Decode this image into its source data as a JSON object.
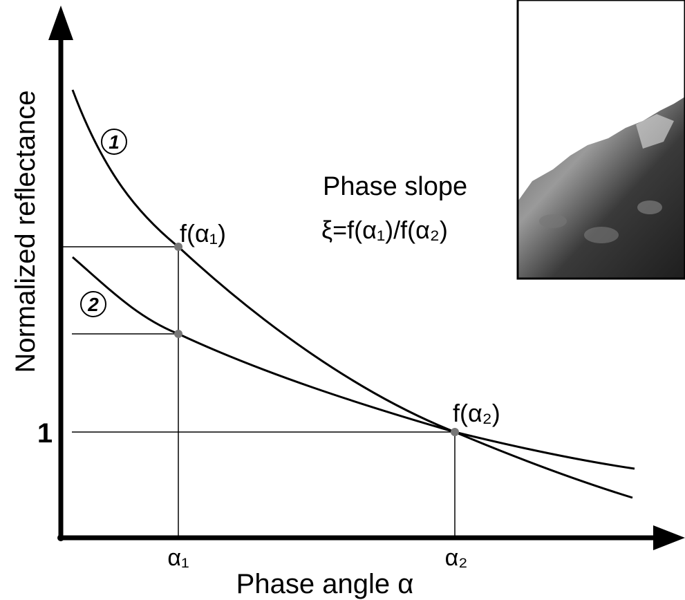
{
  "axes": {
    "y_label": "Normalized reflectance",
    "x_label": "Phase angle α",
    "y_tick": "1",
    "x_ticks": [
      "α₁",
      "α₂"
    ]
  },
  "curves": [
    {
      "label": "1"
    },
    {
      "label": "2"
    }
  ],
  "points": [
    {
      "label": "f(α₁)"
    },
    {
      "label": "f(α₂)"
    }
  ],
  "annotation": {
    "title": "Phase slope",
    "formula": "ξ=f(α₁)/f(α₂)"
  }
}
